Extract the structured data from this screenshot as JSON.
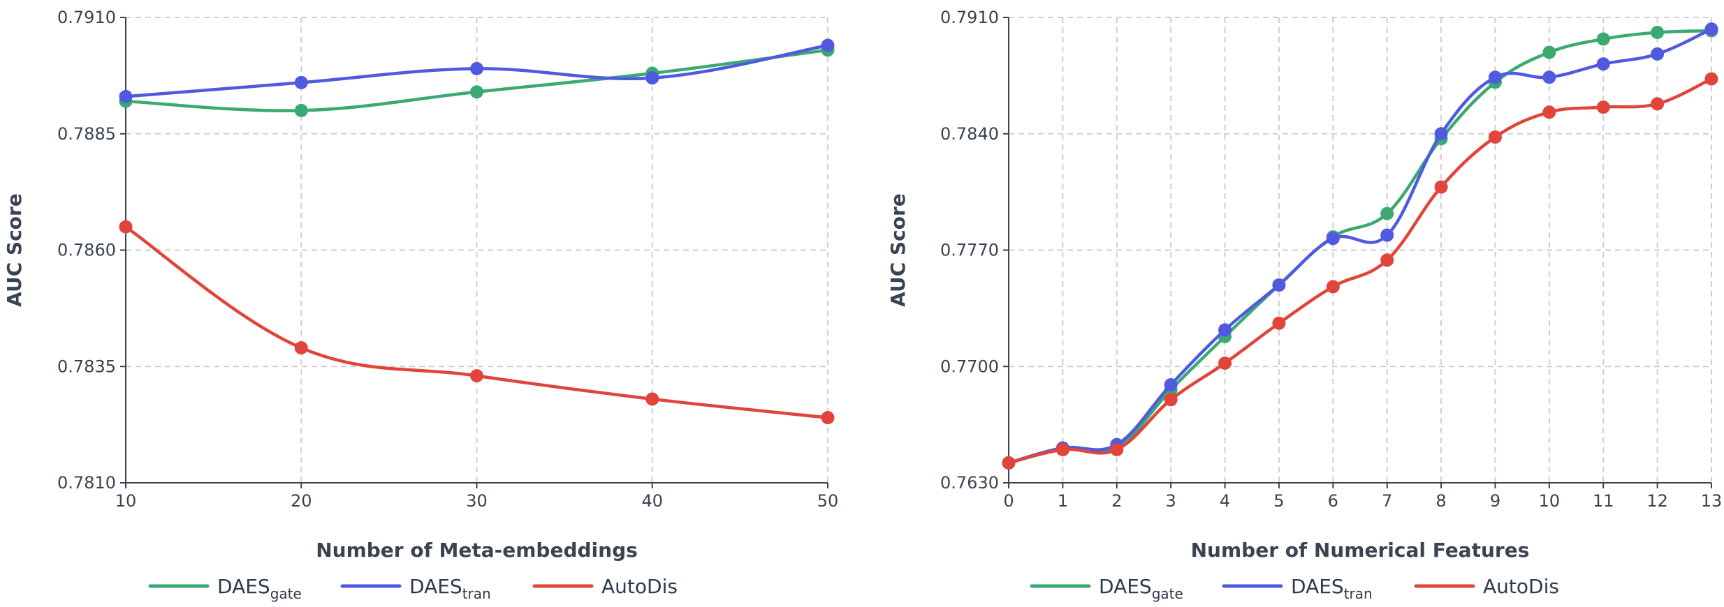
{
  "chart_data": [
    {
      "type": "line",
      "xlabel": "Number of Meta-embeddings",
      "ylabel": "AUC Score",
      "x": [
        10,
        20,
        30,
        40,
        50
      ],
      "xticks": [
        "10",
        "20",
        "30",
        "40",
        "50"
      ],
      "ylim": [
        0.781,
        0.791
      ],
      "yticks": [
        "0.7810",
        "0.7835",
        "0.7860",
        "0.7885",
        "0.7910"
      ],
      "grid": true,
      "legend_position": "bottom",
      "series": [
        {
          "name": "DAESgate",
          "base": "DAES",
          "sub": "gate",
          "color": "#3aaa72",
          "values": [
            0.7892,
            0.789,
            0.7894,
            0.7898,
            0.7903
          ]
        },
        {
          "name": "DAEStran",
          "base": "DAES",
          "sub": "tran",
          "color": "#4f5ae0",
          "values": [
            0.7893,
            0.7896,
            0.7899,
            0.7897,
            0.7904
          ]
        },
        {
          "name": "AutoDis",
          "base": "AutoDis",
          "sub": "",
          "color": "#e0443a",
          "values": [
            0.7865,
            0.7839,
            0.7833,
            0.7828,
            0.7824
          ]
        }
      ]
    },
    {
      "type": "line",
      "xlabel": "Number of Numerical Features",
      "ylabel": "AUC Score",
      "x": [
        0,
        1,
        2,
        3,
        4,
        5,
        6,
        7,
        8,
        9,
        10,
        11,
        12,
        13
      ],
      "xticks": [
        "0",
        "1",
        "2",
        "3",
        "4",
        "5",
        "6",
        "7",
        "8",
        "9",
        "10",
        "11",
        "12",
        "13"
      ],
      "ylim": [
        0.763,
        0.791
      ],
      "yticks": [
        "0.7630",
        "0.7700",
        "0.7770",
        "0.7840",
        "0.7910"
      ],
      "grid": true,
      "legend_position": "bottom",
      "series": [
        {
          "name": "DAESgate",
          "base": "DAES",
          "sub": "gate",
          "color": "#3aaa72",
          "values": [
            0.7642,
            0.765,
            0.7651,
            0.7686,
            0.7718,
            0.7749,
            0.7778,
            0.7792,
            0.7837,
            0.7871,
            0.7889,
            0.7897,
            0.7901,
            0.7902
          ]
        },
        {
          "name": "DAEStran",
          "base": "DAES",
          "sub": "tran",
          "color": "#4f5ae0",
          "values": [
            0.7642,
            0.7651,
            0.7653,
            0.7689,
            0.7722,
            0.7749,
            0.7777,
            0.7779,
            0.784,
            0.7874,
            0.7874,
            0.7882,
            0.7888,
            0.7903
          ]
        },
        {
          "name": "AutoDis",
          "base": "AutoDis",
          "sub": "",
          "color": "#e0443a",
          "values": [
            0.7642,
            0.765,
            0.765,
            0.768,
            0.7702,
            0.7726,
            0.7748,
            0.7764,
            0.7808,
            0.7838,
            0.7853,
            0.7856,
            0.7858,
            0.7873
          ]
        }
      ]
    }
  ]
}
